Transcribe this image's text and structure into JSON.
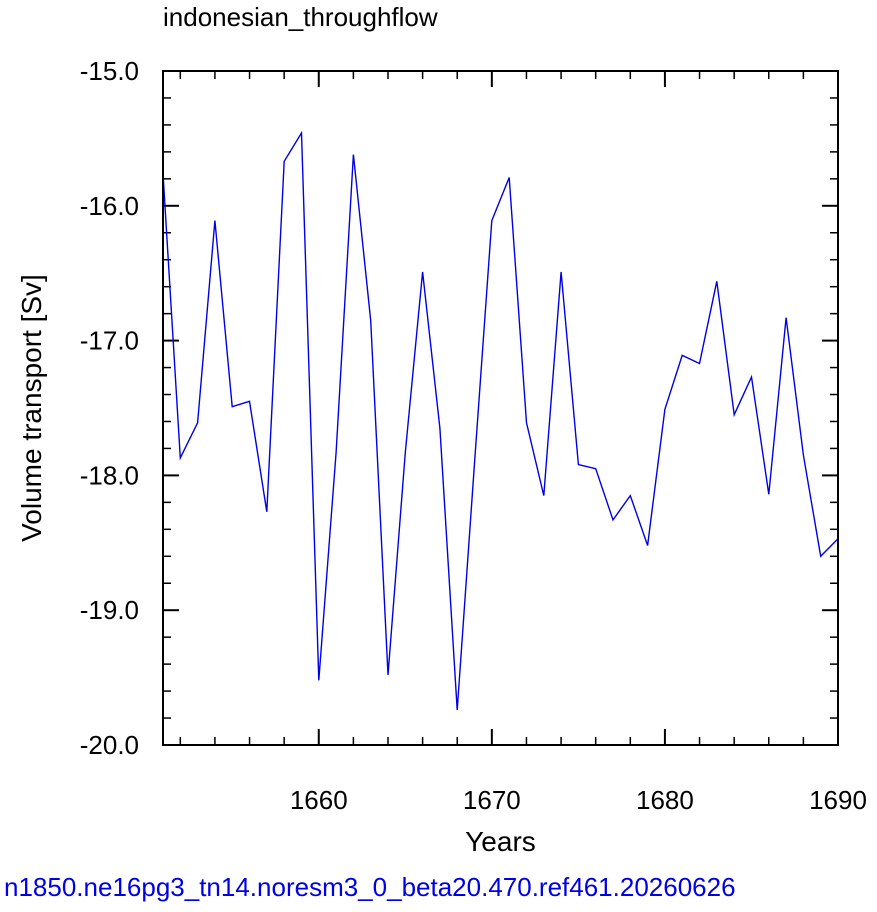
{
  "chart_data": {
    "type": "line",
    "title": "indonesian_throughflow",
    "xlabel": "Years",
    "ylabel": "Volume transport [Sv]",
    "xlim": [
      1651,
      1690
    ],
    "ylim": [
      -20.0,
      -15.0
    ],
    "xticks": [
      1660,
      1670,
      1680,
      1690
    ],
    "xtick_labels": [
      "1660",
      "1670",
      "1680",
      "1690"
    ],
    "yticks": [
      -15.0,
      -16.0,
      -17.0,
      -18.0,
      -19.0,
      -20.0
    ],
    "ytick_labels": [
      "-15.0",
      "-16.0",
      "-17.0",
      "-18.0",
      "-19.0",
      "-20.0"
    ],
    "grid": false,
    "series": [
      {
        "color": "#0000e6",
        "x": [
          1651,
          1652,
          1653,
          1654,
          1655,
          1656,
          1657,
          1658,
          1659,
          1660,
          1661,
          1662,
          1663,
          1664,
          1665,
          1666,
          1667,
          1668,
          1669,
          1670,
          1671,
          1672,
          1673,
          1674,
          1675,
          1676,
          1677,
          1678,
          1679,
          1680,
          1681,
          1682,
          1683,
          1684,
          1685,
          1686,
          1687,
          1688,
          1689,
          1690
        ],
        "y": [
          -15.76,
          -17.87,
          -17.61,
          -16.11,
          -17.49,
          -17.45,
          -18.27,
          -15.67,
          -15.46,
          -19.52,
          -17.83,
          -15.62,
          -16.85,
          -19.48,
          -17.83,
          -16.49,
          -17.65,
          -19.74,
          -17.91,
          -16.11,
          -15.79,
          -17.61,
          -18.15,
          -16.49,
          -17.92,
          -17.95,
          -18.33,
          -18.15,
          -18.52,
          -17.51,
          -17.11,
          -17.17,
          -16.56,
          -17.55,
          -17.27,
          -18.14,
          -16.83,
          -17.85,
          -18.6,
          -18.47
        ]
      }
    ],
    "caption": "n1850.ne16pg3_tn14.noresm3_0_beta20.470.ref461.20260626",
    "caption_color": "#0000e6"
  }
}
